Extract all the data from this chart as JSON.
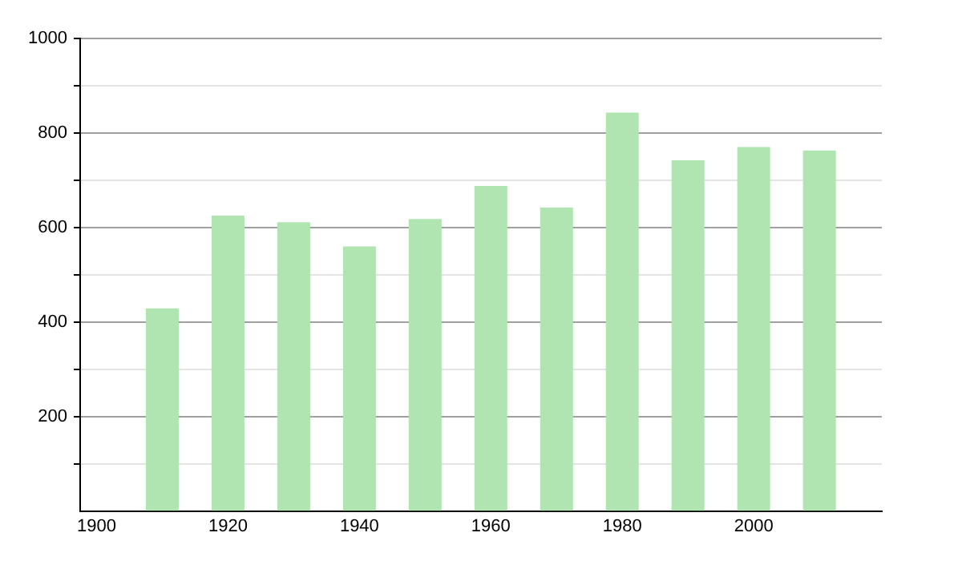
{
  "chart_data": {
    "type": "bar",
    "x": [
      1910,
      1920,
      1930,
      1940,
      1950,
      1960,
      1970,
      1980,
      1990,
      2000,
      2010
    ],
    "values": [
      429,
      625,
      611,
      560,
      618,
      688,
      642,
      843,
      742,
      770,
      763
    ],
    "color": "#b0e4b0",
    "xlim": [
      1897.5,
      2019.5
    ],
    "xticks": [
      1900,
      1920,
      1940,
      1960,
      1980,
      2000
    ],
    "ylim": [
      0,
      1000
    ],
    "yticks": [
      {
        "value": 100,
        "label": null
      },
      200,
      {
        "value": 300,
        "label": null
      },
      400,
      {
        "value": 500,
        "label": null
      },
      600,
      {
        "value": 700,
        "label": null
      },
      800,
      {
        "value": 900,
        "label": null
      },
      1000
    ],
    "grid": "y"
  }
}
